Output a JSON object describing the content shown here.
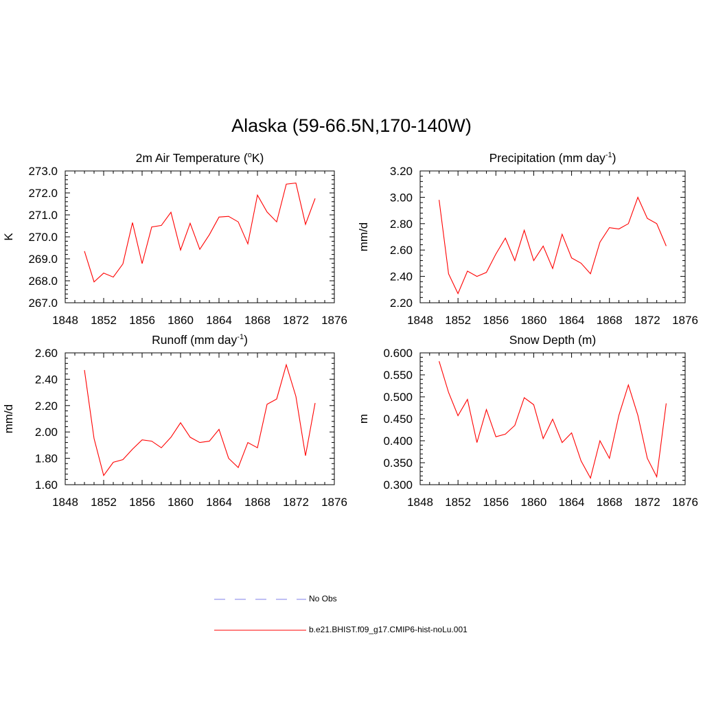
{
  "title": "Alaska (59-66.5N,170-140W)",
  "legend": {
    "items": [
      {
        "label": "No Obs",
        "color": "#9999ee",
        "dash": true
      },
      {
        "label": "b.e21.BHIST.f09_g17.CMIP6-hist-noLu.001",
        "color": "#ff0000",
        "dash": false
      }
    ]
  },
  "chart_data": [
    {
      "type": "line",
      "title": "2m Air Temperature (",
      "title_sup_o": "o",
      "title_rest": "K)",
      "ylabel": "K",
      "xlim": [
        1848,
        1876
      ],
      "xticks": [
        1848,
        1852,
        1856,
        1860,
        1864,
        1868,
        1872,
        1876
      ],
      "ylim": [
        267.0,
        273.0
      ],
      "yticks": [
        "267.0",
        "268.0",
        "269.0",
        "270.0",
        "271.0",
        "272.0",
        "273.0"
      ],
      "series": [
        {
          "color": "#ff0000",
          "x": [
            1850,
            1851,
            1852,
            1853,
            1854,
            1855,
            1856,
            1857,
            1858,
            1859,
            1860,
            1861,
            1862,
            1863,
            1864,
            1865,
            1866,
            1867,
            1868,
            1869,
            1870,
            1871,
            1872,
            1873,
            1874
          ],
          "y": [
            269.35,
            267.95,
            268.35,
            268.17,
            268.77,
            270.65,
            268.78,
            270.45,
            270.52,
            271.12,
            269.4,
            270.62,
            269.43,
            270.1,
            270.9,
            270.93,
            270.68,
            269.68,
            271.9,
            271.13,
            270.68,
            272.4,
            272.45,
            270.57,
            271.75
          ]
        }
      ]
    },
    {
      "type": "line",
      "title": "Precipitation (mm day",
      "title_sup": "-1",
      "title_rest": ")",
      "ylabel": "mm/d",
      "xlim": [
        1848,
        1876
      ],
      "xticks": [
        1848,
        1852,
        1856,
        1860,
        1864,
        1868,
        1872,
        1876
      ],
      "ylim": [
        2.2,
        3.2
      ],
      "yticks": [
        "2.20",
        "2.40",
        "2.60",
        "2.80",
        "3.00",
        "3.20"
      ],
      "series": [
        {
          "color": "#ff0000",
          "x": [
            1850,
            1851,
            1852,
            1853,
            1854,
            1855,
            1856,
            1857,
            1858,
            1859,
            1860,
            1861,
            1862,
            1863,
            1864,
            1865,
            1866,
            1867,
            1868,
            1869,
            1870,
            1871,
            1872,
            1873,
            1874
          ],
          "y": [
            2.98,
            2.42,
            2.27,
            2.44,
            2.4,
            2.43,
            2.57,
            2.69,
            2.52,
            2.75,
            2.52,
            2.63,
            2.46,
            2.72,
            2.54,
            2.5,
            2.42,
            2.66,
            2.77,
            2.76,
            2.8,
            3.0,
            2.84,
            2.8,
            2.63
          ]
        }
      ]
    },
    {
      "type": "line",
      "title": "Runoff (mm day",
      "title_sup": "-1",
      "title_rest": ")",
      "ylabel": "mm/d",
      "xlim": [
        1848,
        1876
      ],
      "xticks": [
        1848,
        1852,
        1856,
        1860,
        1864,
        1868,
        1872,
        1876
      ],
      "ylim": [
        1.6,
        2.6
      ],
      "yticks": [
        "1.60",
        "1.80",
        "2.00",
        "2.20",
        "2.40",
        "2.60"
      ],
      "series": [
        {
          "color": "#ff0000",
          "x": [
            1850,
            1851,
            1852,
            1853,
            1854,
            1855,
            1856,
            1857,
            1858,
            1859,
            1860,
            1861,
            1862,
            1863,
            1864,
            1865,
            1866,
            1867,
            1868,
            1869,
            1870,
            1871,
            1872,
            1873,
            1874
          ],
          "y": [
            2.47,
            1.95,
            1.67,
            1.77,
            1.79,
            1.87,
            1.94,
            1.93,
            1.88,
            1.96,
            2.07,
            1.96,
            1.92,
            1.93,
            2.02,
            1.8,
            1.73,
            1.92,
            1.88,
            2.21,
            2.25,
            2.51,
            2.27,
            1.82,
            2.22
          ]
        }
      ]
    },
    {
      "type": "line",
      "title": "Snow Depth (m)",
      "ylabel": "m",
      "xlim": [
        1848,
        1876
      ],
      "xticks": [
        1848,
        1852,
        1856,
        1860,
        1864,
        1868,
        1872,
        1876
      ],
      "ylim": [
        0.3,
        0.6
      ],
      "yticks": [
        "0.300",
        "0.350",
        "0.400",
        "0.450",
        "0.500",
        "0.550",
        "0.600"
      ],
      "series": [
        {
          "color": "#ff0000",
          "x": [
            1850,
            1851,
            1852,
            1853,
            1854,
            1855,
            1856,
            1857,
            1858,
            1859,
            1860,
            1861,
            1862,
            1863,
            1864,
            1865,
            1866,
            1867,
            1868,
            1869,
            1870,
            1871,
            1872,
            1873,
            1874
          ],
          "y": [
            0.581,
            0.51,
            0.457,
            0.494,
            0.396,
            0.471,
            0.409,
            0.415,
            0.435,
            0.498,
            0.482,
            0.405,
            0.449,
            0.396,
            0.418,
            0.354,
            0.315,
            0.4,
            0.36,
            0.458,
            0.527,
            0.458,
            0.36,
            0.318,
            0.485
          ]
        }
      ]
    }
  ]
}
